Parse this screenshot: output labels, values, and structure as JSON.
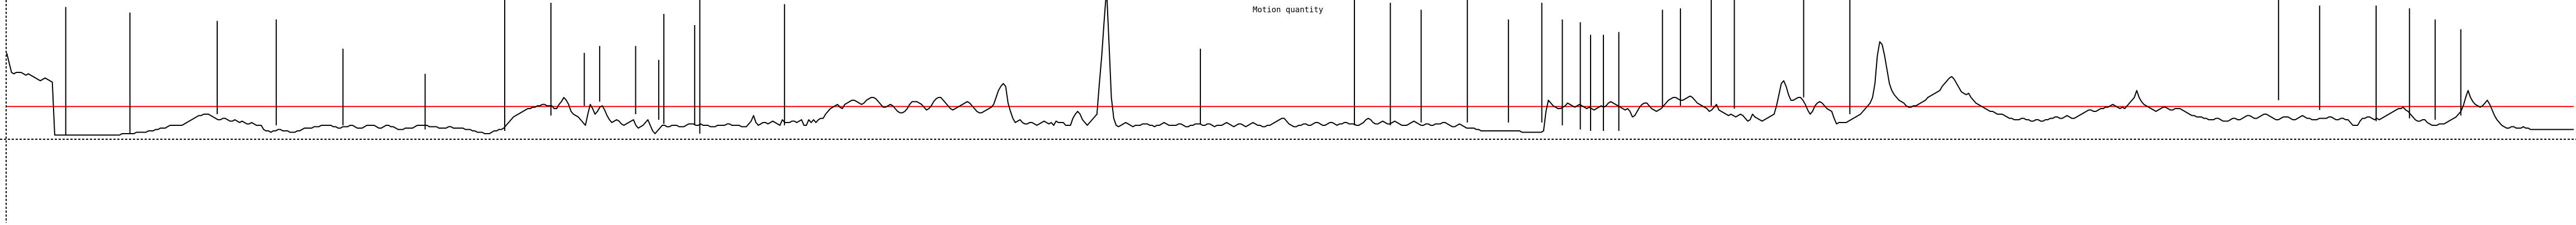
{
  "chart_data": {
    "type": "line",
    "title": "Motion quantity",
    "xlim": [
      0,
      1000
    ],
    "ylim": [
      0,
      100
    ],
    "grid": false,
    "colors": {
      "signal": "#000000",
      "threshold": "#ff0000",
      "axis": "#000000"
    },
    "threshold": {
      "y": 23.5
    },
    "series": [
      {
        "values": [
          62,
          55,
          48,
          47,
          48,
          48,
          48,
          47,
          46,
          47,
          46,
          45,
          44,
          43,
          42,
          43,
          44,
          43,
          42,
          41,
          3,
          3,
          3,
          3,
          3,
          3,
          3,
          3,
          3,
          3,
          3,
          3,
          3,
          3,
          3,
          3,
          3,
          3,
          3,
          3,
          3,
          3,
          3,
          3,
          3,
          3,
          3,
          3,
          4,
          4,
          4,
          4,
          4,
          4,
          5,
          5,
          5,
          5,
          5,
          6,
          6,
          6,
          7,
          7,
          8,
          8,
          8,
          9,
          10,
          10,
          10,
          10,
          10,
          10,
          11,
          12,
          13,
          14,
          15,
          16,
          17,
          17,
          18,
          18,
          18,
          17,
          16,
          15,
          14,
          14,
          15,
          15,
          14,
          13,
          13,
          14,
          13,
          12,
          13,
          12,
          11,
          11,
          12,
          11,
          10,
          10,
          10,
          7,
          6,
          6,
          5,
          6,
          6,
          7,
          7,
          6,
          6,
          6,
          5,
          5,
          5,
          6,
          6,
          7,
          8,
          8,
          8,
          8,
          9,
          9,
          9,
          10,
          10,
          10,
          10,
          10,
          9,
          9,
          8,
          8,
          9,
          9,
          9,
          10,
          10,
          9,
          8,
          8,
          8,
          9,
          10,
          10,
          10,
          10,
          9,
          8,
          8,
          9,
          10,
          10,
          9,
          9,
          8,
          7,
          7,
          7,
          8,
          8,
          8,
          8,
          9,
          10,
          10,
          10,
          10,
          10,
          9,
          9,
          9,
          9,
          8,
          8,
          8,
          8,
          9,
          9,
          8,
          8,
          8,
          8,
          8,
          7,
          7,
          7,
          6,
          6,
          5,
          5,
          5,
          4,
          4,
          4,
          5,
          6,
          6,
          7,
          7,
          8,
          10,
          12,
          14,
          16,
          17,
          18,
          19,
          20,
          21,
          22,
          22,
          23,
          23,
          24,
          24,
          25,
          25,
          24,
          24,
          24,
          22,
          22,
          25,
          27,
          30,
          28,
          25,
          20,
          18,
          17,
          16,
          14,
          12,
          10,
          18,
          25,
          22,
          18,
          20,
          23,
          24,
          21,
          17,
          14,
          12,
          13,
          14,
          13,
          11,
          10,
          11,
          12,
          13,
          14,
          10,
          8,
          9,
          10,
          12,
          14,
          10,
          6,
          4,
          6,
          8,
          10,
          10,
          9,
          9,
          10,
          10,
          10,
          9,
          9,
          9,
          10,
          11,
          11,
          11,
          10,
          10,
          11,
          10,
          10,
          10,
          9,
          9,
          9,
          10,
          10,
          10,
          10,
          11,
          11,
          10,
          10,
          10,
          10,
          9,
          9,
          9,
          11,
          13,
          17,
          12,
          10,
          11,
          12,
          12,
          11,
          12,
          13,
          12,
          11,
          10,
          14,
          12,
          12,
          12,
          13,
          13,
          12,
          13,
          14,
          10,
          10,
          14,
          12,
          14,
          12,
          14,
          15,
          15,
          18,
          20,
          22,
          23,
          24,
          25,
          23,
          22,
          25,
          26,
          27,
          28,
          28,
          27,
          26,
          25,
          26,
          28,
          29,
          30,
          30,
          29,
          27,
          25,
          23,
          23,
          24,
          25,
          24,
          22,
          20,
          19,
          19,
          20,
          22,
          25,
          27,
          27,
          27,
          26,
          25,
          23,
          21,
          22,
          24,
          27,
          29,
          30,
          30,
          28,
          26,
          24,
          22,
          21,
          22,
          23,
          24,
          25,
          26,
          27,
          26,
          24,
          22,
          20,
          19,
          19,
          20,
          21,
          22,
          23,
          25,
          30,
          35,
          38,
          40,
          38,
          26,
          20,
          15,
          12,
          13,
          14,
          12,
          11,
          11,
          12,
          12,
          11,
          10,
          11,
          12,
          13,
          12,
          11,
          12,
          10,
          13,
          12,
          12,
          12,
          10,
          10,
          10,
          15,
          18,
          20,
          18,
          14,
          12,
          10,
          12,
          14,
          16,
          18,
          40,
          60,
          85,
          108,
          70,
          30,
          15,
          10,
          9,
          10,
          11,
          12,
          11,
          10,
          9,
          10,
          10,
          10,
          11,
          11,
          11,
          10,
          10,
          9,
          10,
          10,
          11,
          12,
          11,
          10,
          10,
          10,
          10,
          11,
          11,
          10,
          9,
          9,
          10,
          10,
          11,
          11,
          11,
          10,
          10,
          11,
          11,
          10,
          9,
          10,
          10,
          10,
          11,
          12,
          11,
          10,
          9,
          10,
          11,
          11,
          10,
          9,
          10,
          11,
          12,
          11,
          10,
          10,
          9,
          9,
          10,
          10,
          11,
          12,
          13,
          14,
          15,
          15,
          13,
          11,
          10,
          9,
          9,
          10,
          10,
          11,
          11,
          10,
          10,
          11,
          12,
          12,
          11,
          10,
          10,
          11,
          12,
          12,
          11,
          10,
          11,
          11,
          12,
          12,
          11,
          11,
          11,
          10,
          10,
          11,
          12,
          14,
          15,
          14,
          12,
          11,
          11,
          12,
          13,
          12,
          11,
          11,
          12,
          13,
          12,
          11,
          10,
          10,
          10,
          11,
          12,
          13,
          12,
          11,
          10,
          10,
          11,
          11,
          10,
          10,
          11,
          11,
          11,
          12,
          12,
          11,
          10,
          9,
          9,
          10,
          11,
          10,
          9,
          8,
          8,
          8,
          8,
          7,
          7,
          6,
          6,
          6,
          6,
          6,
          6,
          6,
          6,
          6,
          6,
          6,
          6,
          6,
          6,
          6,
          6,
          6,
          5,
          5,
          5,
          5,
          5,
          5,
          5,
          5,
          5,
          6,
          20,
          28,
          26,
          24,
          23,
          22,
          22,
          23,
          24,
          26,
          25,
          24,
          23,
          24,
          25,
          24,
          23,
          22,
          23,
          22,
          21,
          22,
          23,
          24,
          23,
          24,
          26,
          27,
          26,
          25,
          24,
          23,
          22,
          21,
          22,
          20,
          16,
          17,
          20,
          23,
          25,
          26,
          26,
          24,
          22,
          21,
          20,
          21,
          22,
          24,
          26,
          28,
          29,
          30,
          30,
          29,
          28,
          28,
          29,
          30,
          31,
          30,
          28,
          26,
          25,
          24,
          23,
          22,
          20,
          21,
          23,
          25,
          21,
          20,
          19,
          18,
          17,
          18,
          17,
          16,
          17,
          18,
          17,
          15,
          13,
          14,
          18,
          16,
          15,
          14,
          13,
          14,
          15,
          16,
          17,
          18,
          24,
          32,
          40,
          42,
          38,
          32,
          28,
          28,
          29,
          30,
          30,
          28,
          25,
          21,
          18,
          20,
          24,
          26,
          27,
          26,
          24,
          22,
          21,
          20,
          15,
          11,
          12,
          12,
          12,
          12,
          13,
          14,
          15,
          16,
          17,
          18,
          20,
          22,
          24,
          26,
          30,
          40,
          60,
          70,
          68,
          60,
          50,
          40,
          35,
          32,
          30,
          28,
          27,
          26,
          24,
          23,
          23,
          24,
          24,
          25,
          26,
          27,
          28,
          30,
          31,
          32,
          33,
          34,
          35,
          38,
          40,
          42,
          44,
          45,
          43,
          40,
          37,
          34,
          33,
          32,
          33,
          30,
          28,
          26,
          25,
          24,
          23,
          22,
          21,
          20,
          20,
          19,
          18,
          18,
          18,
          17,
          16,
          15,
          15,
          14,
          14,
          14,
          15,
          15,
          14,
          14,
          13,
          13,
          14,
          14,
          13,
          13,
          14,
          14,
          15,
          15,
          16,
          16,
          15,
          15,
          16,
          17,
          16,
          15,
          15,
          16,
          17,
          18,
          19,
          20,
          21,
          21,
          20,
          20,
          21,
          22,
          22,
          23,
          23,
          24,
          25,
          24,
          23,
          22,
          23,
          22,
          24,
          26,
          28,
          30,
          35,
          30,
          27,
          25,
          24,
          23,
          22,
          21,
          20,
          21,
          22,
          23,
          23,
          22,
          21,
          21,
          22,
          22,
          22,
          21,
          20,
          19,
          18,
          17,
          17,
          16,
          16,
          16,
          15,
          15,
          14,
          14,
          14,
          15,
          15,
          14,
          13,
          13,
          13,
          14,
          15,
          15,
          14,
          14,
          15,
          16,
          17,
          17,
          16,
          15,
          15,
          16,
          17,
          18,
          18,
          17,
          16,
          15,
          14,
          14,
          15,
          16,
          16,
          16,
          15,
          14,
          14,
          15,
          16,
          17,
          16,
          15,
          15,
          14,
          14,
          14,
          15,
          15,
          15,
          15,
          16,
          16,
          15,
          14,
          14,
          15,
          15,
          14,
          14,
          12,
          10,
          10,
          10,
          13,
          15,
          15,
          16,
          16,
          15,
          14,
          15,
          14,
          15,
          16,
          17,
          18,
          19,
          20,
          21,
          22,
          22,
          23,
          21,
          20,
          18,
          16,
          14,
          13,
          13,
          14,
          14,
          12,
          11,
          10,
          10,
          10,
          11,
          11,
          11,
          12,
          13,
          14,
          15,
          16,
          18,
          20,
          24,
          30,
          35,
          30,
          27,
          25,
          24,
          23,
          24,
          26,
          28,
          25,
          21,
          17,
          14,
          12,
          10,
          9,
          8,
          8,
          9,
          9,
          8,
          8,
          8,
          9,
          8,
          8,
          7,
          7,
          7,
          7,
          7,
          7,
          7,
          7,
          7,
          7,
          7,
          7,
          7,
          7,
          7,
          7,
          7,
          7,
          7
        ]
      }
    ],
    "spikes": {
      "count": 40,
      "x": [
        23,
        48,
        82,
        105,
        131,
        163,
        194,
        212,
        225,
        231,
        245,
        254,
        256,
        268,
        270,
        303,
        465,
        525,
        539,
        551,
        569,
        585,
        598,
        606,
        613,
        617,
        622,
        628,
        645,
        652,
        664,
        673,
        700,
        718,
        885,
        901,
        923,
        936,
        946,
        956
      ],
      "top": [
        95,
        91,
        85,
        86,
        65,
        47,
        101,
        98,
        62,
        67,
        67,
        57,
        90,
        82,
        102,
        97,
        65,
        101,
        98,
        93,
        100,
        86,
        98,
        86,
        84,
        75,
        75,
        77,
        93,
        94,
        100,
        102,
        100,
        100,
        102,
        96,
        96,
        94,
        86,
        79
      ]
    }
  }
}
